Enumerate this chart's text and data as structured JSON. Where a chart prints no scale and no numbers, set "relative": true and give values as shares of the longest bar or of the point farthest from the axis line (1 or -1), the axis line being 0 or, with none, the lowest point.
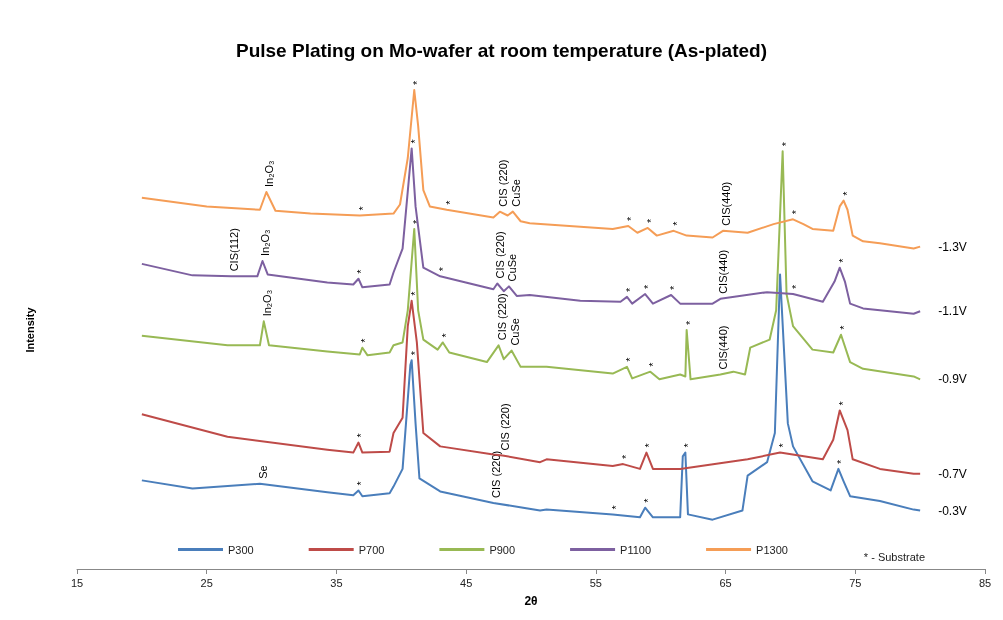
{
  "chart_data": {
    "type": "line",
    "title": "Pulse Plating on Mo-wafer at room temperature (As-plated)",
    "xlabel": "2θ",
    "ylabel": "Intensity",
    "relative": true,
    "xlim": [
      15,
      85
    ],
    "xticks": [
      15,
      25,
      35,
      45,
      55,
      65,
      75,
      85
    ],
    "grid": false,
    "legend": "bottom",
    "marker": "none",
    "series": [
      {
        "name": "P300",
        "color": "#4a7ebb",
        "x": [
          20,
          23.9,
          29.1,
          34.3,
          36.3,
          36.7,
          37.0,
          39.1,
          39.4,
          40.1,
          40.7,
          40.8,
          41.1,
          41.4,
          43.0,
          47.1,
          50.7,
          51.2,
          56.3,
          58.4,
          58.8,
          59.4,
          61.5,
          61.7,
          61.9,
          62.1,
          64.0,
          66.3,
          66.7,
          68.2,
          68.8,
          69.2,
          69.8,
          70.2,
          71.7,
          73.1,
          73.7,
          74.1,
          74.6,
          76.9,
          79.5,
          80.0
        ],
        "values": [
          0.185,
          0.168,
          0.178,
          0.16,
          0.154,
          0.164,
          0.152,
          0.158,
          0.172,
          0.209,
          0.426,
          0.436,
          0.304,
          0.189,
          0.162,
          0.138,
          0.122,
          0.124,
          0.114,
          0.108,
          0.128,
          0.108,
          0.108,
          0.235,
          0.243,
          0.114,
          0.103,
          0.122,
          0.195,
          0.223,
          0.284,
          0.615,
          0.304,
          0.256,
          0.183,
          0.164,
          0.209,
          0.183,
          0.152,
          0.142,
          0.124,
          0.122
        ]
      },
      {
        "name": "P700",
        "color": "#be4b48",
        "x": [
          20,
          26.6,
          34.3,
          36.3,
          36.7,
          37.0,
          39.1,
          39.4,
          40.1,
          40.5,
          40.8,
          41.2,
          41.7,
          43.0,
          47.1,
          47.8,
          50.7,
          51.2,
          56.3,
          57.1,
          58.4,
          58.9,
          59.4,
          61.5,
          66.7,
          69.2,
          72.5,
          73.3,
          73.8,
          74.4,
          74.8,
          76.9,
          79.5,
          80.0
        ],
        "values": [
          0.323,
          0.276,
          0.249,
          0.243,
          0.264,
          0.243,
          0.245,
          0.284,
          0.316,
          0.507,
          0.56,
          0.473,
          0.284,
          0.256,
          0.239,
          0.237,
          0.223,
          0.229,
          0.215,
          0.219,
          0.209,
          0.243,
          0.209,
          0.209,
          0.229,
          0.243,
          0.229,
          0.27,
          0.331,
          0.29,
          0.229,
          0.209,
          0.199,
          0.199
        ]
      },
      {
        "name": "P900",
        "color": "#98b954",
        "x": [
          20,
          26.6,
          29.1,
          29.4,
          29.8,
          34.3,
          36.8,
          37.0,
          37.4,
          39.1,
          39.4,
          40.1,
          40.5,
          41.0,
          41.3,
          41.7,
          42.8,
          43.2,
          43.7,
          46.6,
          47.5,
          47.9,
          48.5,
          49.2,
          51.2,
          56.3,
          57.4,
          57.8,
          59.2,
          59.9,
          61.5,
          61.9,
          62.0,
          62.3,
          64.6,
          65.6,
          66.5,
          66.9,
          68.4,
          68.9,
          69.4,
          69.7,
          70.2,
          71.7,
          73.3,
          73.9,
          74.6,
          75.6,
          79.5,
          80.0
        ],
        "values": [
          0.487,
          0.467,
          0.467,
          0.517,
          0.467,
          0.454,
          0.448,
          0.462,
          0.446,
          0.452,
          0.467,
          0.473,
          0.54,
          0.71,
          0.54,
          0.479,
          0.458,
          0.473,
          0.452,
          0.432,
          0.467,
          0.438,
          0.456,
          0.422,
          0.422,
          0.408,
          0.422,
          0.398,
          0.412,
          0.396,
          0.406,
          0.402,
          0.499,
          0.396,
          0.406,
          0.412,
          0.406,
          0.462,
          0.479,
          0.54,
          0.872,
          0.574,
          0.507,
          0.458,
          0.452,
          0.489,
          0.432,
          0.418,
          0.402,
          0.396
        ]
      },
      {
        "name": "P1100",
        "color": "#7d60a0",
        "x": [
          20,
          23.9,
          26.9,
          28.1,
          28.9,
          29.3,
          29.7,
          34.3,
          36.3,
          36.7,
          37.0,
          39.1,
          39.4,
          40.1,
          40.8,
          41.1,
          41.7,
          43.0,
          47.1,
          47.4,
          47.9,
          48.3,
          48.9,
          49.9,
          53.8,
          56.9,
          57.4,
          57.8,
          58.8,
          59.4,
          60.8,
          61.5,
          64.0,
          64.6,
          68.2,
          70.2,
          72.5,
          73.4,
          73.8,
          74.2,
          74.6,
          75.6,
          79.5,
          80.0
        ],
        "values": [
          0.637,
          0.613,
          0.611,
          0.611,
          0.611,
          0.643,
          0.615,
          0.598,
          0.594,
          0.606,
          0.588,
          0.594,
          0.619,
          0.669,
          0.878,
          0.757,
          0.629,
          0.611,
          0.584,
          0.596,
          0.58,
          0.59,
          0.57,
          0.572,
          0.56,
          0.558,
          0.568,
          0.554,
          0.574,
          0.554,
          0.572,
          0.554,
          0.554,
          0.564,
          0.578,
          0.574,
          0.558,
          0.6,
          0.629,
          0.6,
          0.554,
          0.544,
          0.533,
          0.538
        ]
      },
      {
        "name": "P1300",
        "color": "#f59d56",
        "x": [
          20,
          25,
          29.1,
          29.6,
          30.3,
          33,
          36.8,
          39.4,
          39.9,
          40.5,
          41.0,
          41.3,
          41.7,
          42.2,
          43.5,
          47.1,
          47.6,
          48.2,
          48.6,
          49.2,
          49.9,
          56.3,
          57.5,
          58.2,
          59.0,
          59.7,
          61.0,
          62.0,
          64.0,
          64.8,
          66.7,
          68.7,
          70.2,
          71.0,
          71.7,
          73.3,
          73.8,
          74.1,
          74.4,
          74.8,
          75.6,
          76.9,
          79.5,
          80.0
        ],
        "values": [
          0.775,
          0.757,
          0.75,
          0.787,
          0.748,
          0.742,
          0.738,
          0.742,
          0.761,
          0.858,
          1.0,
          0.925,
          0.791,
          0.757,
          0.75,
          0.734,
          0.746,
          0.738,
          0.746,
          0.726,
          0.722,
          0.71,
          0.716,
          0.702,
          0.712,
          0.696,
          0.706,
          0.696,
          0.692,
          0.706,
          0.702,
          0.72,
          0.73,
          0.72,
          0.71,
          0.706,
          0.757,
          0.769,
          0.75,
          0.696,
          0.684,
          0.68,
          0.669,
          0.673
        ]
      }
    ],
    "annotations": [
      {
        "text": "In₂O₃",
        "x": 29.6,
        "y": 0.787
      },
      {
        "text": "CIS (220)",
        "x": 47.6,
        "y": 0.746
      },
      {
        "text": "CuSe",
        "x": 48.6,
        "y": 0.746
      },
      {
        "text": "CIS(440)",
        "x": 64.8,
        "y": 0.706
      },
      {
        "text": "CIS(112)",
        "x": 26.9,
        "y": 0.611
      },
      {
        "text": "In₂O₃",
        "x": 29.3,
        "y": 0.643
      },
      {
        "text": "CIS (220)",
        "x": 47.4,
        "y": 0.596
      },
      {
        "text": "CuSe",
        "x": 48.3,
        "y": 0.59
      },
      {
        "text": "CIS(440)",
        "x": 64.6,
        "y": 0.564
      },
      {
        "text": "In₂O₃",
        "x": 29.4,
        "y": 0.517
      },
      {
        "text": "CIS (220)",
        "x": 47.5,
        "y": 0.467
      },
      {
        "text": "CuSe",
        "x": 48.5,
        "y": 0.456
      },
      {
        "text": "CIS(440)",
        "x": 64.6,
        "y": 0.406
      },
      {
        "text": "CIS (220)",
        "x": 47.8,
        "y": 0.237
      },
      {
        "text": "CIS (220)",
        "x": 47.1,
        "y": 0.138
      },
      {
        "text": "Se",
        "x": 29.1,
        "y": 0.178
      },
      {
        "text": "*",
        "x": 36.8,
        "y": 0.738
      },
      {
        "text": "*",
        "x": 41.0,
        "y": 1.0
      },
      {
        "text": "*",
        "x": 43.5,
        "y": 0.75
      },
      {
        "text": "*",
        "x": 57.5,
        "y": 0.716
      },
      {
        "text": "*",
        "x": 59.0,
        "y": 0.712
      },
      {
        "text": "*",
        "x": 61.0,
        "y": 0.706
      },
      {
        "text": "*",
        "x": 70.2,
        "y": 0.73
      },
      {
        "text": "*",
        "x": 74.1,
        "y": 0.769
      },
      {
        "text": "*",
        "x": 36.7,
        "y": 0.606
      },
      {
        "text": "*",
        "x": 40.8,
        "y": 0.878
      },
      {
        "text": "*",
        "x": 43.0,
        "y": 0.611
      },
      {
        "text": "*",
        "x": 57.4,
        "y": 0.568
      },
      {
        "text": "*",
        "x": 58.8,
        "y": 0.574
      },
      {
        "text": "*",
        "x": 60.8,
        "y": 0.572
      },
      {
        "text": "*",
        "x": 73.8,
        "y": 0.629
      },
      {
        "text": "*",
        "x": 70.2,
        "y": 0.574
      },
      {
        "text": "*",
        "x": 69.4,
        "y": 0.872
      },
      {
        "text": "*",
        "x": 37.0,
        "y": 0.462
      },
      {
        "text": "*",
        "x": 41.0,
        "y": 0.71
      },
      {
        "text": "*",
        "x": 43.2,
        "y": 0.473
      },
      {
        "text": "*",
        "x": 57.4,
        "y": 0.422
      },
      {
        "text": "*",
        "x": 59.2,
        "y": 0.412
      },
      {
        "text": "*",
        "x": 62.0,
        "y": 0.499
      },
      {
        "text": "*",
        "x": 73.9,
        "y": 0.489
      },
      {
        "text": "*",
        "x": 36.7,
        "y": 0.264
      },
      {
        "text": "*",
        "x": 40.8,
        "y": 0.56
      },
      {
        "text": "*",
        "x": 57.1,
        "y": 0.219
      },
      {
        "text": "*",
        "x": 58.9,
        "y": 0.243
      },
      {
        "text": "*",
        "x": 61.9,
        "y": 0.243
      },
      {
        "text": "*",
        "x": 69.2,
        "y": 0.243
      },
      {
        "text": "*",
        "x": 73.8,
        "y": 0.331
      },
      {
        "text": "*",
        "x": 36.7,
        "y": 0.164
      },
      {
        "text": "*",
        "x": 40.8,
        "y": 0.436
      },
      {
        "text": "*",
        "x": 56.3,
        "y": 0.114
      },
      {
        "text": "*",
        "x": 58.8,
        "y": 0.128
      },
      {
        "text": "*",
        "x": 73.7,
        "y": 0.209
      },
      {
        "text": "-1.3V",
        "x": 80.0,
        "y": 0.673
      },
      {
        "text": "-1.1V",
        "x": 80.0,
        "y": 0.538
      },
      {
        "text": "-0.9V",
        "x": 80.0,
        "y": 0.396
      },
      {
        "text": "-0.7V",
        "x": 80.0,
        "y": 0.199
      },
      {
        "text": "-0.3V",
        "x": 80.0,
        "y": 0.122
      },
      "* - Substrate"
    ]
  }
}
